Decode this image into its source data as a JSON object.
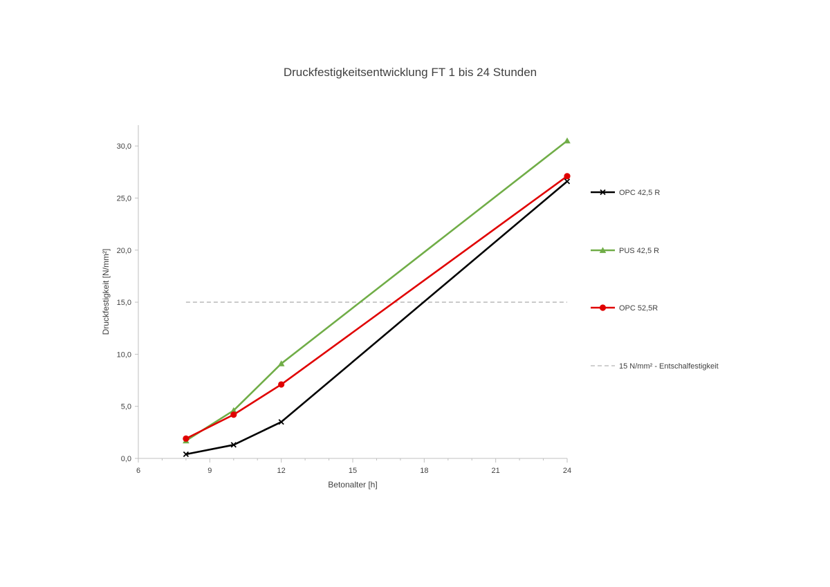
{
  "chart_data": {
    "type": "line",
    "title": "Druckfestigkeitsentwicklung FT 1 bis 24 Stunden",
    "xlabel": "Betonalter [h]",
    "ylabel": "Druckfestigkeit [N/mm²]",
    "xlim": [
      6,
      24
    ],
    "ylim": [
      0,
      32
    ],
    "x_ticks": [
      6,
      9,
      12,
      15,
      18,
      21,
      24
    ],
    "x_tick_labels": [
      "6",
      "9",
      "12",
      "15",
      "18",
      "21",
      "24"
    ],
    "y_ticks": [
      0,
      5,
      10,
      15,
      20,
      25,
      30
    ],
    "y_tick_labels": [
      "0,0",
      "5,0",
      "10,0",
      "15,0",
      "20,0",
      "25,0",
      "30,0"
    ],
    "grid": false,
    "legend_position": "right",
    "series": [
      {
        "name": "OPC 42,5 R",
        "color": "#000000",
        "marker": "x",
        "x": [
          8,
          10,
          12,
          24
        ],
        "values": [
          0.4,
          1.3,
          3.5,
          26.6
        ]
      },
      {
        "name": "PUS 42,5 R",
        "color": "#70ad47",
        "marker": "triangle",
        "x": [
          8,
          10,
          12,
          24
        ],
        "values": [
          1.7,
          4.6,
          9.1,
          30.5
        ]
      },
      {
        "name": "OPC 52,5R",
        "color": "#e00000",
        "marker": "circle",
        "x": [
          8,
          10,
          12,
          24
        ],
        "values": [
          1.9,
          4.2,
          7.1,
          27.1
        ]
      },
      {
        "name": "15 N/mm² - Entschalfestigkeit",
        "color": "#bfbfbf",
        "marker": "none",
        "dashed": true,
        "x": [
          8,
          24
        ],
        "values": [
          15,
          15
        ]
      }
    ]
  }
}
